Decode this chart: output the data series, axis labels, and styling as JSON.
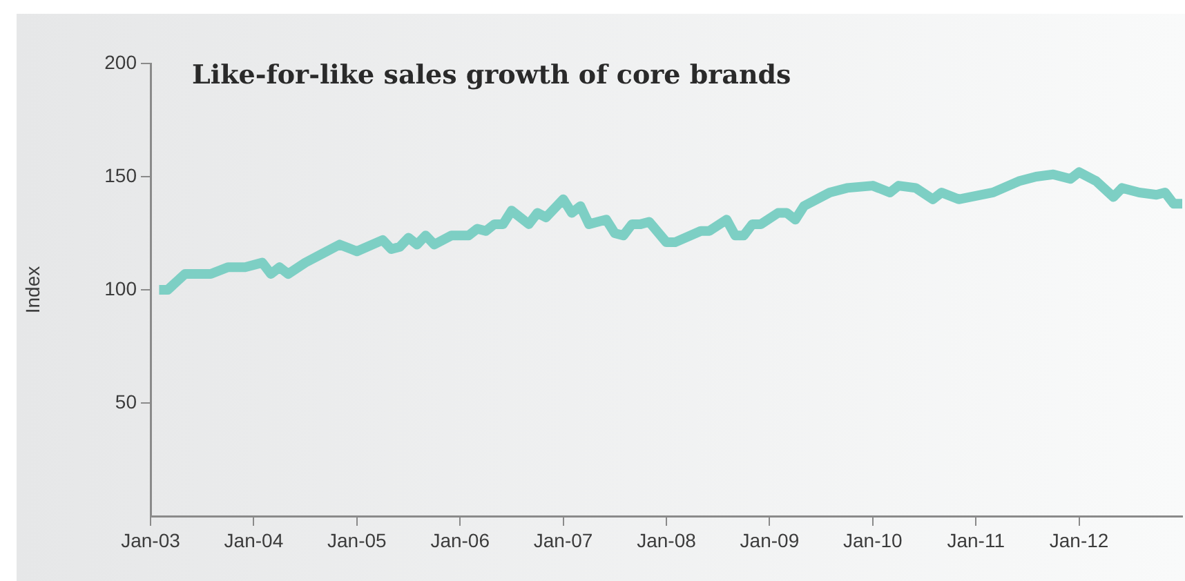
{
  "chart_data": {
    "type": "line",
    "title": "Like-for-like sales growth of core brands",
    "ylabel": "Index",
    "x": [
      "2003-02",
      "2003-03",
      "2003-05",
      "2003-08",
      "2003-10",
      "2003-12",
      "2004-02",
      "2004-03",
      "2004-04",
      "2004-05",
      "2004-07",
      "2004-09",
      "2004-11",
      "2005-01",
      "2005-04",
      "2005-05",
      "2005-06",
      "2005-07",
      "2005-08",
      "2005-09",
      "2005-10",
      "2005-12",
      "2006-02",
      "2006-03",
      "2006-04",
      "2006-05",
      "2006-06",
      "2006-07",
      "2006-09",
      "2006-10",
      "2006-11",
      "2007-01",
      "2007-02",
      "2007-03",
      "2007-04",
      "2007-06",
      "2007-07",
      "2007-08",
      "2007-09",
      "2007-10",
      "2007-11",
      "2008-01",
      "2008-02",
      "2008-05",
      "2008-06",
      "2008-08",
      "2008-09",
      "2008-10",
      "2008-11",
      "2008-12",
      "2009-02",
      "2009-03",
      "2009-04",
      "2009-05",
      "2009-07",
      "2009-08",
      "2009-10",
      "2010-01",
      "2010-03",
      "2010-04",
      "2010-06",
      "2010-08",
      "2010-09",
      "2010-11",
      "2011-03",
      "2011-06",
      "2011-08",
      "2011-10",
      "2011-12",
      "2012-01",
      "2012-03",
      "2012-05",
      "2012-06",
      "2012-08",
      "2012-10",
      "2012-11",
      "2012-12",
      "2013-01"
    ],
    "series": [
      {
        "color": "#7dcfc4",
        "values": [
          100,
          100,
          107,
          107,
          110,
          110,
          112,
          107,
          110,
          107,
          112,
          116,
          120,
          117,
          122,
          118,
          119,
          123,
          120,
          124,
          120,
          124,
          124,
          127,
          126,
          129,
          129,
          135,
          129,
          134,
          132,
          140,
          134,
          137,
          129,
          131,
          125,
          124,
          129,
          129,
          130,
          121,
          121,
          126,
          126,
          131,
          124,
          124,
          129,
          129,
          134,
          134,
          131,
          137,
          141,
          143,
          145,
          146,
          143,
          146,
          145,
          140,
          143,
          140,
          143,
          148,
          150,
          151,
          149,
          152,
          148,
          141,
          145,
          143,
          142,
          143,
          138,
          138
        ]
      }
    ],
    "xlim": [
      "2003-01",
      "2013-01"
    ],
    "xticks": [
      {
        "value": "2003-01",
        "label": "Jan-03"
      },
      {
        "value": "2004-01",
        "label": "Jan-04"
      },
      {
        "value": "2005-01",
        "label": "Jan-05"
      },
      {
        "value": "2006-01",
        "label": "Jan-06"
      },
      {
        "value": "2007-01",
        "label": "Jan-07"
      },
      {
        "value": "2008-01",
        "label": "Jan-08"
      },
      {
        "value": "2009-01",
        "label": "Jan-09"
      },
      {
        "value": "2010-01",
        "label": "Jan-10"
      },
      {
        "value": "2011-01",
        "label": "Jan-11"
      },
      {
        "value": "2012-01",
        "label": "Jan-12"
      }
    ],
    "ylim": [
      0,
      200
    ],
    "yticks": [
      50,
      100,
      150,
      200
    ],
    "grid": false,
    "legend": false,
    "marker": "none",
    "line_style": "solid"
  }
}
